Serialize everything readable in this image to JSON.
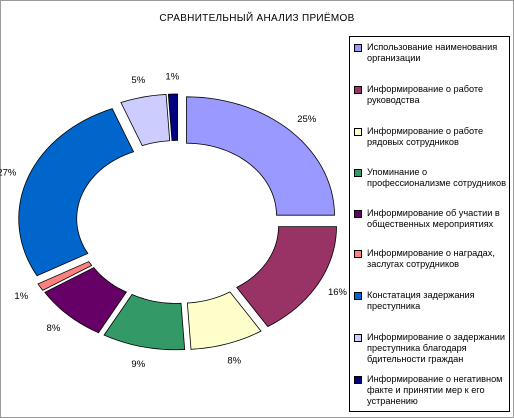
{
  "chart_data": {
    "type": "pie",
    "title": "СРАВНИТЕЛЬНЫЙ АНАЛИЗ ПРИЁМОВ",
    "legend_position": "right",
    "series": [
      {
        "name": "Использование наименования организации",
        "value": 25,
        "label": "25%",
        "color": "#9999ff"
      },
      {
        "name": "Информирование о работе руководства",
        "value": 16,
        "label": "16%",
        "color": "#993366"
      },
      {
        "name": "Информирование о работе рядовых сотрудников",
        "value": 8,
        "label": "8%",
        "color": "#ffffcc"
      },
      {
        "name": "Упоминание о профессионализме сотрудников",
        "value": 9,
        "label": "9%",
        "color": "#339966"
      },
      {
        "name": "Информирование об участии в общественных мероприятиях",
        "value": 8,
        "label": "8%",
        "color": "#660066"
      },
      {
        "name": "Информирование о наградах, заслугах сотрудников",
        "value": 1,
        "label": "1%",
        "color": "#ff8080"
      },
      {
        "name": "Констатация задержания преступника",
        "value": 27,
        "label": "27%",
        "color": "#0066cc"
      },
      {
        "name": "Информирование о задержании преступника благодаря бдительности граждан",
        "value": 5,
        "label": "5%",
        "color": "#ccccff"
      },
      {
        "name": "Информирование о негативном факте и принятии мер к его устранению",
        "value": 1,
        "label": "1%",
        "color": "#000080"
      }
    ]
  }
}
